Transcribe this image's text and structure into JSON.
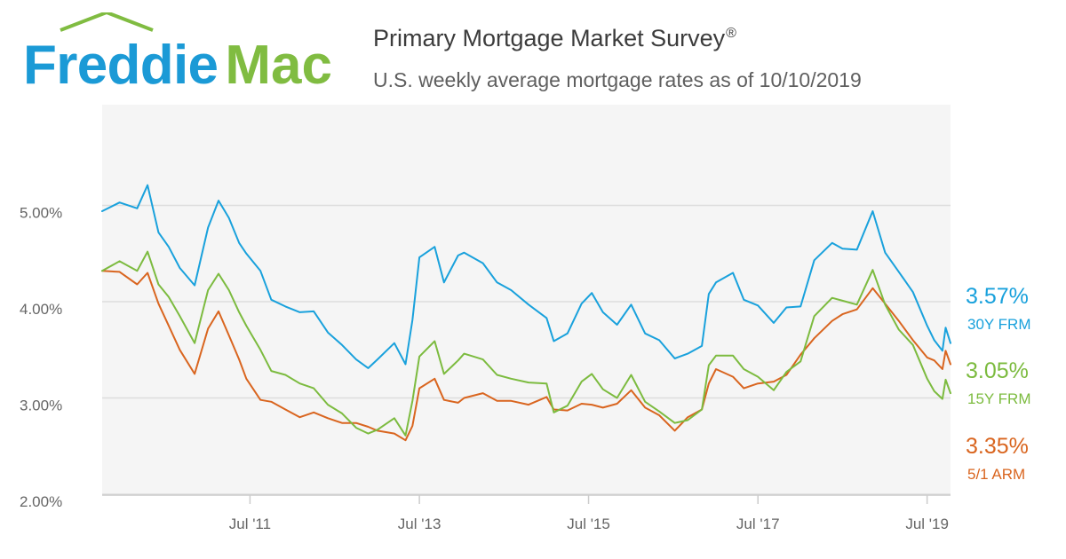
{
  "header": {
    "logo_text": "Freddie Mac",
    "title": "Primary Mortgage Market Survey",
    "title_mark": "®",
    "subtitle": "U.S. weekly average mortgage rates as of 10/10/2019"
  },
  "colors": {
    "frm30": "#19a1dc",
    "frm15": "#7cbb3f",
    "arm51": "#d9651f",
    "logo_blue": "#1b9ad6",
    "logo_green": "#80bc41",
    "plot_bg": "#f5f5f5",
    "grid": "#dddddd"
  },
  "legend": [
    {
      "value": "3.57%",
      "name": "30Y FRM",
      "color": "#19a1dc"
    },
    {
      "value": "3.05%",
      "name": "15Y FRM",
      "color": "#7cbb3f"
    },
    {
      "value": "3.35%",
      "name": "5/1 ARM",
      "color": "#d9651f"
    }
  ],
  "chart_data": {
    "type": "line",
    "title": "Primary Mortgage Market Survey",
    "subtitle": "U.S. weekly average mortgage rates as of 10/10/2019",
    "xlabel": "",
    "ylabel": "",
    "x_range": [
      "2009-10-01",
      "2019-10-10"
    ],
    "ylim": [
      1.9,
      5.0
    ],
    "y_ticks": [
      {
        "value": 2.0,
        "label": "2.00%"
      },
      {
        "value": 3.0,
        "label": "3.00%"
      },
      {
        "value": 4.0,
        "label": "4.00%"
      },
      {
        "value": 5.0,
        "label": "5.00%"
      }
    ],
    "x_ticks": [
      {
        "date": "2011-07-01",
        "label": "Jul '11"
      },
      {
        "date": "2013-07-01",
        "label": "Jul '13"
      },
      {
        "date": "2015-07-01",
        "label": "Jul '15"
      },
      {
        "date": "2017-07-01",
        "label": "Jul '17"
      },
      {
        "date": "2019-07-01",
        "label": "Jul '19"
      }
    ],
    "grid": true,
    "series": [
      {
        "name": "30Y FRM",
        "points": [
          [
            "2009-10-01",
            4.94
          ],
          [
            "2009-12-15",
            5.03
          ],
          [
            "2010-03-01",
            4.97
          ],
          [
            "2010-04-15",
            5.21
          ],
          [
            "2010-06-01",
            4.72
          ],
          [
            "2010-07-15",
            4.57
          ],
          [
            "2010-09-01",
            4.35
          ],
          [
            "2010-11-04",
            4.17
          ],
          [
            "2011-01-01",
            4.77
          ],
          [
            "2011-02-15",
            5.05
          ],
          [
            "2011-04-01",
            4.87
          ],
          [
            "2011-05-15",
            4.61
          ],
          [
            "2011-06-15",
            4.5
          ],
          [
            "2011-08-15",
            4.32
          ],
          [
            "2011-10-01",
            4.02
          ],
          [
            "2011-12-01",
            3.95
          ],
          [
            "2012-02-01",
            3.89
          ],
          [
            "2012-04-01",
            3.9
          ],
          [
            "2012-06-01",
            3.68
          ],
          [
            "2012-08-01",
            3.55
          ],
          [
            "2012-10-01",
            3.4
          ],
          [
            "2012-11-22",
            3.31
          ],
          [
            "2013-01-01",
            3.4
          ],
          [
            "2013-03-15",
            3.57
          ],
          [
            "2013-05-02",
            3.35
          ],
          [
            "2013-06-01",
            3.81
          ],
          [
            "2013-07-01",
            4.46
          ],
          [
            "2013-09-05",
            4.57
          ],
          [
            "2013-10-15",
            4.2
          ],
          [
            "2013-12-15",
            4.48
          ],
          [
            "2014-01-10",
            4.51
          ],
          [
            "2014-04-01",
            4.4
          ],
          [
            "2014-06-01",
            4.2
          ],
          [
            "2014-08-01",
            4.12
          ],
          [
            "2014-10-15",
            3.97
          ],
          [
            "2015-01-01",
            3.83
          ],
          [
            "2015-02-01",
            3.59
          ],
          [
            "2015-04-01",
            3.67
          ],
          [
            "2015-06-01",
            3.98
          ],
          [
            "2015-07-15",
            4.09
          ],
          [
            "2015-09-01",
            3.89
          ],
          [
            "2015-11-01",
            3.76
          ],
          [
            "2016-01-01",
            3.97
          ],
          [
            "2016-03-01",
            3.67
          ],
          [
            "2016-05-01",
            3.6
          ],
          [
            "2016-07-07",
            3.41
          ],
          [
            "2016-09-01",
            3.46
          ],
          [
            "2016-11-01",
            3.54
          ],
          [
            "2016-12-01",
            4.08
          ],
          [
            "2017-01-01",
            4.2
          ],
          [
            "2017-03-15",
            4.3
          ],
          [
            "2017-05-01",
            4.02
          ],
          [
            "2017-07-01",
            3.96
          ],
          [
            "2017-09-07",
            3.78
          ],
          [
            "2017-11-01",
            3.94
          ],
          [
            "2018-01-01",
            3.95
          ],
          [
            "2018-03-01",
            4.43
          ],
          [
            "2018-05-17",
            4.61
          ],
          [
            "2018-07-01",
            4.55
          ],
          [
            "2018-09-01",
            4.54
          ],
          [
            "2018-11-08",
            4.94
          ],
          [
            "2019-01-01",
            4.51
          ],
          [
            "2019-03-01",
            4.31
          ],
          [
            "2019-05-01",
            4.1
          ],
          [
            "2019-07-01",
            3.75
          ],
          [
            "2019-08-01",
            3.6
          ],
          [
            "2019-09-05",
            3.49
          ],
          [
            "2019-09-19",
            3.73
          ],
          [
            "2019-10-10",
            3.57
          ]
        ]
      },
      {
        "name": "15Y FRM",
        "points": [
          [
            "2009-10-01",
            4.32
          ],
          [
            "2009-12-15",
            4.42
          ],
          [
            "2010-03-01",
            4.32
          ],
          [
            "2010-04-15",
            4.52
          ],
          [
            "2010-06-01",
            4.18
          ],
          [
            "2010-07-15",
            4.05
          ],
          [
            "2010-09-01",
            3.85
          ],
          [
            "2010-11-04",
            3.57
          ],
          [
            "2011-01-01",
            4.12
          ],
          [
            "2011-02-15",
            4.29
          ],
          [
            "2011-04-01",
            4.12
          ],
          [
            "2011-05-15",
            3.89
          ],
          [
            "2011-06-15",
            3.75
          ],
          [
            "2011-08-15",
            3.5
          ],
          [
            "2011-10-01",
            3.28
          ],
          [
            "2011-12-01",
            3.24
          ],
          [
            "2012-02-01",
            3.15
          ],
          [
            "2012-04-01",
            3.1
          ],
          [
            "2012-06-01",
            2.93
          ],
          [
            "2012-08-01",
            2.84
          ],
          [
            "2012-10-01",
            2.69
          ],
          [
            "2012-11-22",
            2.63
          ],
          [
            "2013-01-01",
            2.67
          ],
          [
            "2013-03-15",
            2.79
          ],
          [
            "2013-05-02",
            2.61
          ],
          [
            "2013-06-01",
            2.97
          ],
          [
            "2013-07-01",
            3.43
          ],
          [
            "2013-09-05",
            3.59
          ],
          [
            "2013-10-15",
            3.25
          ],
          [
            "2013-12-15",
            3.39
          ],
          [
            "2014-01-10",
            3.46
          ],
          [
            "2014-04-01",
            3.4
          ],
          [
            "2014-06-01",
            3.24
          ],
          [
            "2014-08-01",
            3.2
          ],
          [
            "2014-10-15",
            3.16
          ],
          [
            "2015-01-01",
            3.15
          ],
          [
            "2015-02-01",
            2.85
          ],
          [
            "2015-04-01",
            2.92
          ],
          [
            "2015-06-01",
            3.17
          ],
          [
            "2015-07-15",
            3.25
          ],
          [
            "2015-09-01",
            3.09
          ],
          [
            "2015-11-01",
            3.0
          ],
          [
            "2016-01-01",
            3.24
          ],
          [
            "2016-03-01",
            2.96
          ],
          [
            "2016-05-01",
            2.86
          ],
          [
            "2016-07-07",
            2.74
          ],
          [
            "2016-09-01",
            2.77
          ],
          [
            "2016-11-01",
            2.88
          ],
          [
            "2016-12-01",
            3.34
          ],
          [
            "2017-01-01",
            3.44
          ],
          [
            "2017-03-15",
            3.44
          ],
          [
            "2017-05-01",
            3.3
          ],
          [
            "2017-07-01",
            3.22
          ],
          [
            "2017-09-07",
            3.08
          ],
          [
            "2017-11-01",
            3.27
          ],
          [
            "2018-01-01",
            3.38
          ],
          [
            "2018-03-01",
            3.85
          ],
          [
            "2018-05-17",
            4.04
          ],
          [
            "2018-07-01",
            4.01
          ],
          [
            "2018-09-01",
            3.97
          ],
          [
            "2018-11-08",
            4.33
          ],
          [
            "2019-01-01",
            3.97
          ],
          [
            "2019-03-01",
            3.71
          ],
          [
            "2019-05-01",
            3.55
          ],
          [
            "2019-07-01",
            3.2
          ],
          [
            "2019-08-01",
            3.07
          ],
          [
            "2019-09-05",
            2.99
          ],
          [
            "2019-09-19",
            3.19
          ],
          [
            "2019-10-10",
            3.05
          ]
        ]
      },
      {
        "name": "5/1 ARM",
        "points": [
          [
            "2009-10-01",
            4.32
          ],
          [
            "2009-12-15",
            4.31
          ],
          [
            "2010-03-01",
            4.18
          ],
          [
            "2010-04-15",
            4.3
          ],
          [
            "2010-06-01",
            3.98
          ],
          [
            "2010-07-15",
            3.75
          ],
          [
            "2010-09-01",
            3.5
          ],
          [
            "2010-11-04",
            3.25
          ],
          [
            "2011-01-01",
            3.72
          ],
          [
            "2011-02-15",
            3.9
          ],
          [
            "2011-04-01",
            3.65
          ],
          [
            "2011-05-15",
            3.4
          ],
          [
            "2011-06-15",
            3.2
          ],
          [
            "2011-08-15",
            2.98
          ],
          [
            "2011-10-01",
            2.96
          ],
          [
            "2011-12-01",
            2.88
          ],
          [
            "2012-02-01",
            2.8
          ],
          [
            "2012-04-01",
            2.85
          ],
          [
            "2012-06-01",
            2.79
          ],
          [
            "2012-08-01",
            2.74
          ],
          [
            "2012-10-01",
            2.74
          ],
          [
            "2012-11-22",
            2.7
          ],
          [
            "2013-01-01",
            2.66
          ],
          [
            "2013-03-15",
            2.63
          ],
          [
            "2013-05-02",
            2.56
          ],
          [
            "2013-06-01",
            2.71
          ],
          [
            "2013-07-01",
            3.1
          ],
          [
            "2013-09-05",
            3.2
          ],
          [
            "2013-10-15",
            2.98
          ],
          [
            "2013-12-15",
            2.95
          ],
          [
            "2014-01-10",
            3.0
          ],
          [
            "2014-04-01",
            3.05
          ],
          [
            "2014-06-01",
            2.97
          ],
          [
            "2014-08-01",
            2.97
          ],
          [
            "2014-10-15",
            2.93
          ],
          [
            "2015-01-01",
            3.01
          ],
          [
            "2015-02-01",
            2.88
          ],
          [
            "2015-04-01",
            2.87
          ],
          [
            "2015-06-01",
            2.94
          ],
          [
            "2015-07-15",
            2.93
          ],
          [
            "2015-09-01",
            2.9
          ],
          [
            "2015-11-01",
            2.94
          ],
          [
            "2016-01-01",
            3.08
          ],
          [
            "2016-03-01",
            2.9
          ],
          [
            "2016-05-01",
            2.82
          ],
          [
            "2016-07-07",
            2.66
          ],
          [
            "2016-09-01",
            2.8
          ],
          [
            "2016-11-01",
            2.88
          ],
          [
            "2016-12-01",
            3.15
          ],
          [
            "2017-01-01",
            3.3
          ],
          [
            "2017-03-15",
            3.22
          ],
          [
            "2017-05-01",
            3.1
          ],
          [
            "2017-07-01",
            3.15
          ],
          [
            "2017-09-07",
            3.17
          ],
          [
            "2017-11-01",
            3.24
          ],
          [
            "2018-01-01",
            3.45
          ],
          [
            "2018-03-01",
            3.62
          ],
          [
            "2018-05-17",
            3.8
          ],
          [
            "2018-07-01",
            3.87
          ],
          [
            "2018-09-01",
            3.92
          ],
          [
            "2018-11-08",
            4.14
          ],
          [
            "2019-01-01",
            3.98
          ],
          [
            "2019-03-01",
            3.8
          ],
          [
            "2019-05-01",
            3.6
          ],
          [
            "2019-07-01",
            3.42
          ],
          [
            "2019-08-01",
            3.39
          ],
          [
            "2019-09-05",
            3.3
          ],
          [
            "2019-09-19",
            3.49
          ],
          [
            "2019-10-10",
            3.35
          ]
        ]
      }
    ]
  }
}
